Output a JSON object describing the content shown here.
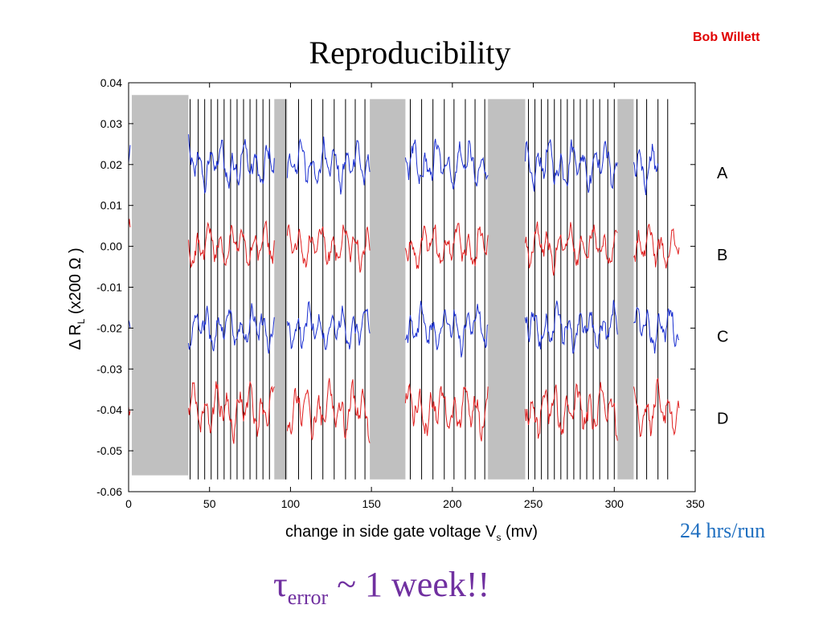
{
  "slide": {
    "title": "Reproducibility",
    "author": "Bob Willett",
    "run_note": "24 hrs/run",
    "footnote": {
      "symbol": "τ",
      "subscript": "error",
      "rest": " ~ 1 week!!",
      "color": "#7030a0"
    }
  },
  "colors": {
    "blue_trace": "#1a2fd0",
    "red_trace": "#e02020",
    "gray_band": "#c0c0c0",
    "author": "#e00000",
    "run_note": "#1f6fc0"
  },
  "chart_data": {
    "type": "line",
    "xlabel_main": "change in side gate voltage V",
    "xlabel_sub": "s",
    "xlabel_unit": " (mv)",
    "ylabel_pre": "Δ R",
    "ylabel_sub": "L",
    "ylabel_post": " (x200 Ω )",
    "xlim": [
      0,
      350
    ],
    "ylim": [
      -0.06,
      0.04
    ],
    "xticks": [
      "0",
      "50",
      "100",
      "150",
      "200",
      "250",
      "300",
      "350"
    ],
    "xtick_values": [
      0,
      50,
      100,
      150,
      200,
      250,
      300,
      350
    ],
    "yticks": [
      "0.04",
      "0.03",
      "0.02",
      "0.01",
      "0.00",
      "-0.01",
      "-0.02",
      "-0.03",
      "-0.04",
      "-0.05",
      "-0.06"
    ],
    "ytick_values": [
      0.04,
      0.03,
      0.02,
      0.01,
      0.0,
      -0.01,
      -0.02,
      -0.03,
      -0.04,
      -0.05,
      -0.06
    ],
    "gray_bands": [
      {
        "x0": 2,
        "x1": 37,
        "y0": -0.056,
        "y1": 0.037
      },
      {
        "x0": 90,
        "x1": 98,
        "y0": -0.057,
        "y1": 0.036
      },
      {
        "x0": 149,
        "x1": 171,
        "y0": -0.057,
        "y1": 0.036
      },
      {
        "x0": 222,
        "x1": 245,
        "y0": -0.057,
        "y1": 0.036
      },
      {
        "x0": 302,
        "x1": 312,
        "y0": -0.057,
        "y1": 0.036
      }
    ],
    "vertical_lines": [
      38,
      43,
      47,
      51,
      55,
      59,
      63,
      67,
      71,
      75,
      79,
      83,
      87,
      97,
      105,
      113,
      120,
      127,
      134,
      140,
      146,
      174,
      181,
      188,
      195,
      201,
      208,
      214,
      220,
      247,
      251,
      255,
      259,
      263,
      267,
      271,
      275,
      279,
      283,
      287,
      291,
      296,
      300,
      314,
      320,
      327,
      333
    ],
    "series": [
      {
        "label": "A",
        "color": "#1a2fd0",
        "offset": 0.02,
        "amplitude": 0.006,
        "segments": [
          [
            0,
            1
          ],
          [
            37,
            90
          ],
          [
            98,
            149
          ],
          [
            171,
            222
          ],
          [
            245,
            302
          ],
          [
            312,
            327
          ]
        ]
      },
      {
        "label": "B",
        "color": "#e02020",
        "offset": 0.0,
        "amplitude": 0.0055,
        "segments": [
          [
            0,
            1
          ],
          [
            37,
            90
          ],
          [
            98,
            149
          ],
          [
            171,
            222
          ],
          [
            245,
            302
          ],
          [
            312,
            340
          ]
        ]
      },
      {
        "label": "C",
        "color": "#1a2fd0",
        "offset": -0.02,
        "amplitude": 0.0055,
        "segments": [
          [
            0,
            1
          ],
          [
            37,
            90
          ],
          [
            98,
            149
          ],
          [
            171,
            222
          ],
          [
            245,
            302
          ],
          [
            312,
            340
          ]
        ]
      },
      {
        "label": "D",
        "color": "#e02020",
        "offset": -0.04,
        "amplitude": 0.0065,
        "segments": [
          [
            0,
            1
          ],
          [
            37,
            90
          ],
          [
            98,
            149
          ],
          [
            171,
            222
          ],
          [
            245,
            302
          ],
          [
            312,
            340
          ]
        ]
      }
    ],
    "right_labels": [
      "A",
      "B",
      "C",
      "D"
    ],
    "legend": "none",
    "grid": false
  }
}
